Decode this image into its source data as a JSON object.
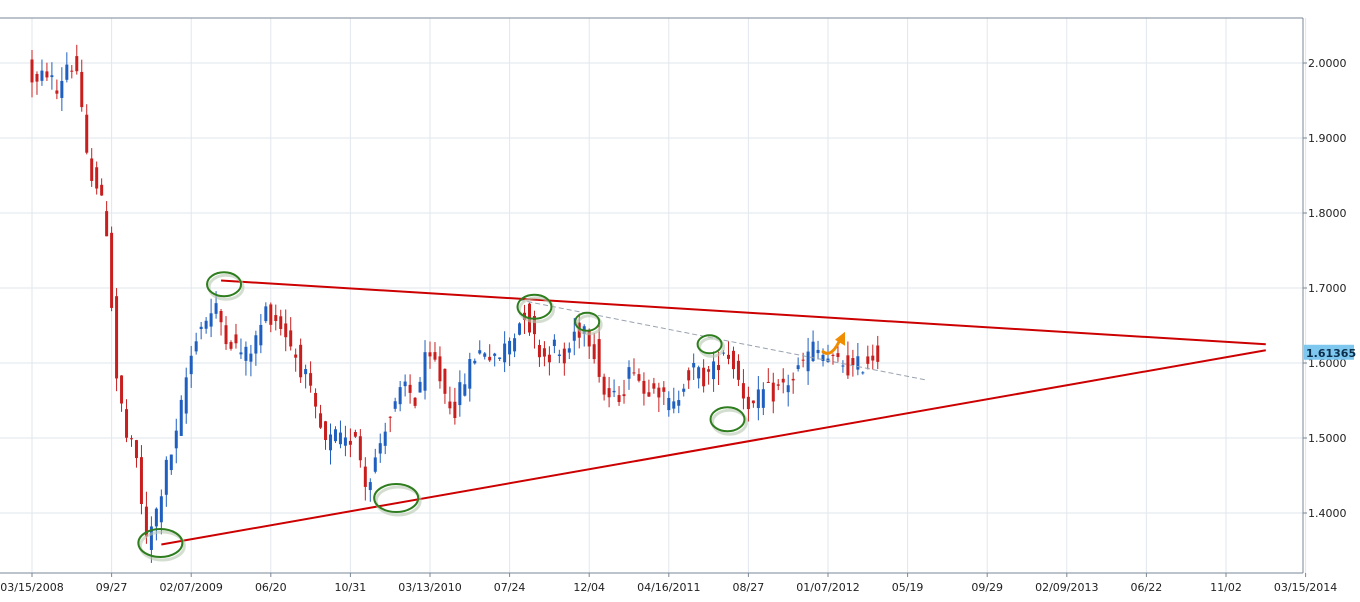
{
  "chart_data": {
    "type": "candlestick",
    "title": "",
    "xlabel": "",
    "ylabel": "",
    "ylim": [
      1.32,
      2.06
    ],
    "grid": true,
    "x_ticks": [
      "03/15/2008",
      "09/27",
      "02/07/2009",
      "06/20",
      "10/31",
      "03/13/2010",
      "07/24",
      "12/04",
      "04/16/2011",
      "08/27",
      "01/07/2012",
      "05/19",
      "09/29",
      "02/09/2013",
      "06/22",
      "11/02",
      "03/15/2014"
    ],
    "y_ticks": [
      "1.4000",
      "1.5000",
      "1.6000",
      "1.7000",
      "1.8000",
      "1.9000",
      "2.0000"
    ],
    "y_tick_values": [
      1.4,
      1.5,
      1.6,
      1.7,
      1.8,
      1.9,
      2.0
    ],
    "last_price": "1.61365",
    "last_price_value": 1.61365,
    "colors": {
      "up": "#1f5fbf",
      "down": "#c81e1e",
      "trendline": "#cc0000",
      "circle": "#2e7d1e",
      "arrow": "#f08c00",
      "price_tag": "#7ec8f0",
      "grid": "#e2e7ee",
      "dashed": "#9aa3b0"
    },
    "price_path": [
      [
        0,
        2.0
      ],
      [
        0.5,
        1.98
      ],
      [
        1,
        1.97
      ],
      [
        2,
        1.99
      ],
      [
        3,
        1.96
      ],
      [
        4,
        2.0
      ],
      [
        5,
        1.99
      ],
      [
        6,
        1.87
      ],
      [
        7,
        1.84
      ],
      [
        8,
        1.78
      ],
      [
        9,
        1.58
      ],
      [
        10,
        1.5
      ],
      [
        11,
        1.47
      ],
      [
        12,
        1.36
      ],
      [
        13,
        1.4
      ],
      [
        14,
        1.46
      ],
      [
        15,
        1.5
      ],
      [
        16,
        1.58
      ],
      [
        17,
        1.64
      ],
      [
        18,
        1.66
      ],
      [
        19,
        1.67
      ],
      [
        20,
        1.64
      ],
      [
        21,
        1.62
      ],
      [
        22,
        1.61
      ],
      [
        23,
        1.63
      ],
      [
        24,
        1.67
      ],
      [
        25,
        1.66
      ],
      [
        26,
        1.64
      ],
      [
        27,
        1.61
      ],
      [
        28,
        1.58
      ],
      [
        29,
        1.53
      ],
      [
        30,
        1.49
      ],
      [
        31,
        1.5
      ],
      [
        32,
        1.49
      ],
      [
        33,
        1.51
      ],
      [
        34,
        1.44
      ],
      [
        35,
        1.47
      ],
      [
        36,
        1.52
      ],
      [
        37,
        1.54
      ],
      [
        38,
        1.57
      ],
      [
        39,
        1.55
      ],
      [
        40,
        1.6
      ],
      [
        41,
        1.6
      ],
      [
        42,
        1.56
      ],
      [
        43,
        1.54
      ],
      [
        44,
        1.58
      ],
      [
        45,
        1.61
      ],
      [
        46,
        1.62
      ],
      [
        47,
        1.6
      ],
      [
        48,
        1.62
      ],
      [
        49,
        1.64
      ],
      [
        50,
        1.67
      ],
      [
        51,
        1.63
      ],
      [
        52,
        1.61
      ],
      [
        53,
        1.62
      ],
      [
        54,
        1.6
      ],
      [
        55,
        1.64
      ],
      [
        56,
        1.65
      ],
      [
        57,
        1.62
      ],
      [
        58,
        1.56
      ],
      [
        59,
        1.55
      ],
      [
        60,
        1.57
      ],
      [
        61,
        1.6
      ],
      [
        62,
        1.56
      ],
      [
        63,
        1.58
      ],
      [
        64,
        1.55
      ],
      [
        65,
        1.54
      ],
      [
        66,
        1.58
      ],
      [
        67,
        1.59
      ],
      [
        68,
        1.58
      ],
      [
        69,
        1.59
      ],
      [
        70,
        1.62
      ],
      [
        71,
        1.6
      ],
      [
        72,
        1.56
      ],
      [
        73,
        1.54
      ],
      [
        74,
        1.56
      ],
      [
        75,
        1.56
      ],
      [
        76,
        1.57
      ],
      [
        77,
        1.58
      ],
      [
        78,
        1.6
      ],
      [
        79,
        1.62
      ],
      [
        80,
        1.61
      ],
      [
        81,
        1.6
      ],
      [
        82,
        1.6
      ],
      [
        83,
        1.59
      ],
      [
        84,
        1.6
      ],
      [
        85,
        1.61
      ]
    ],
    "resistance_line": {
      "from": [
        19,
        1.71
      ],
      "to": [
        124,
        1.625
      ]
    },
    "support_line": {
      "from": [
        13,
        1.358
      ],
      "to": [
        124,
        1.617
      ]
    },
    "dashed_line": {
      "from": [
        49,
        1.684
      ],
      "to": [
        90,
        1.577
      ]
    },
    "highlights": [
      {
        "x": 12.9,
        "y": 1.36,
        "size": "large"
      },
      {
        "x": 19.3,
        "y": 1.705,
        "size": "medium"
      },
      {
        "x": 36.6,
        "y": 1.42,
        "size": "large"
      },
      {
        "x": 50.5,
        "y": 1.675,
        "size": "medium"
      },
      {
        "x": 55.8,
        "y": 1.655,
        "size": "small"
      },
      {
        "x": 68.1,
        "y": 1.625,
        "size": "small"
      },
      {
        "x": 69.9,
        "y": 1.525,
        "size": "medium"
      }
    ],
    "arrow_at": [
      79.5,
      1.615
    ]
  }
}
